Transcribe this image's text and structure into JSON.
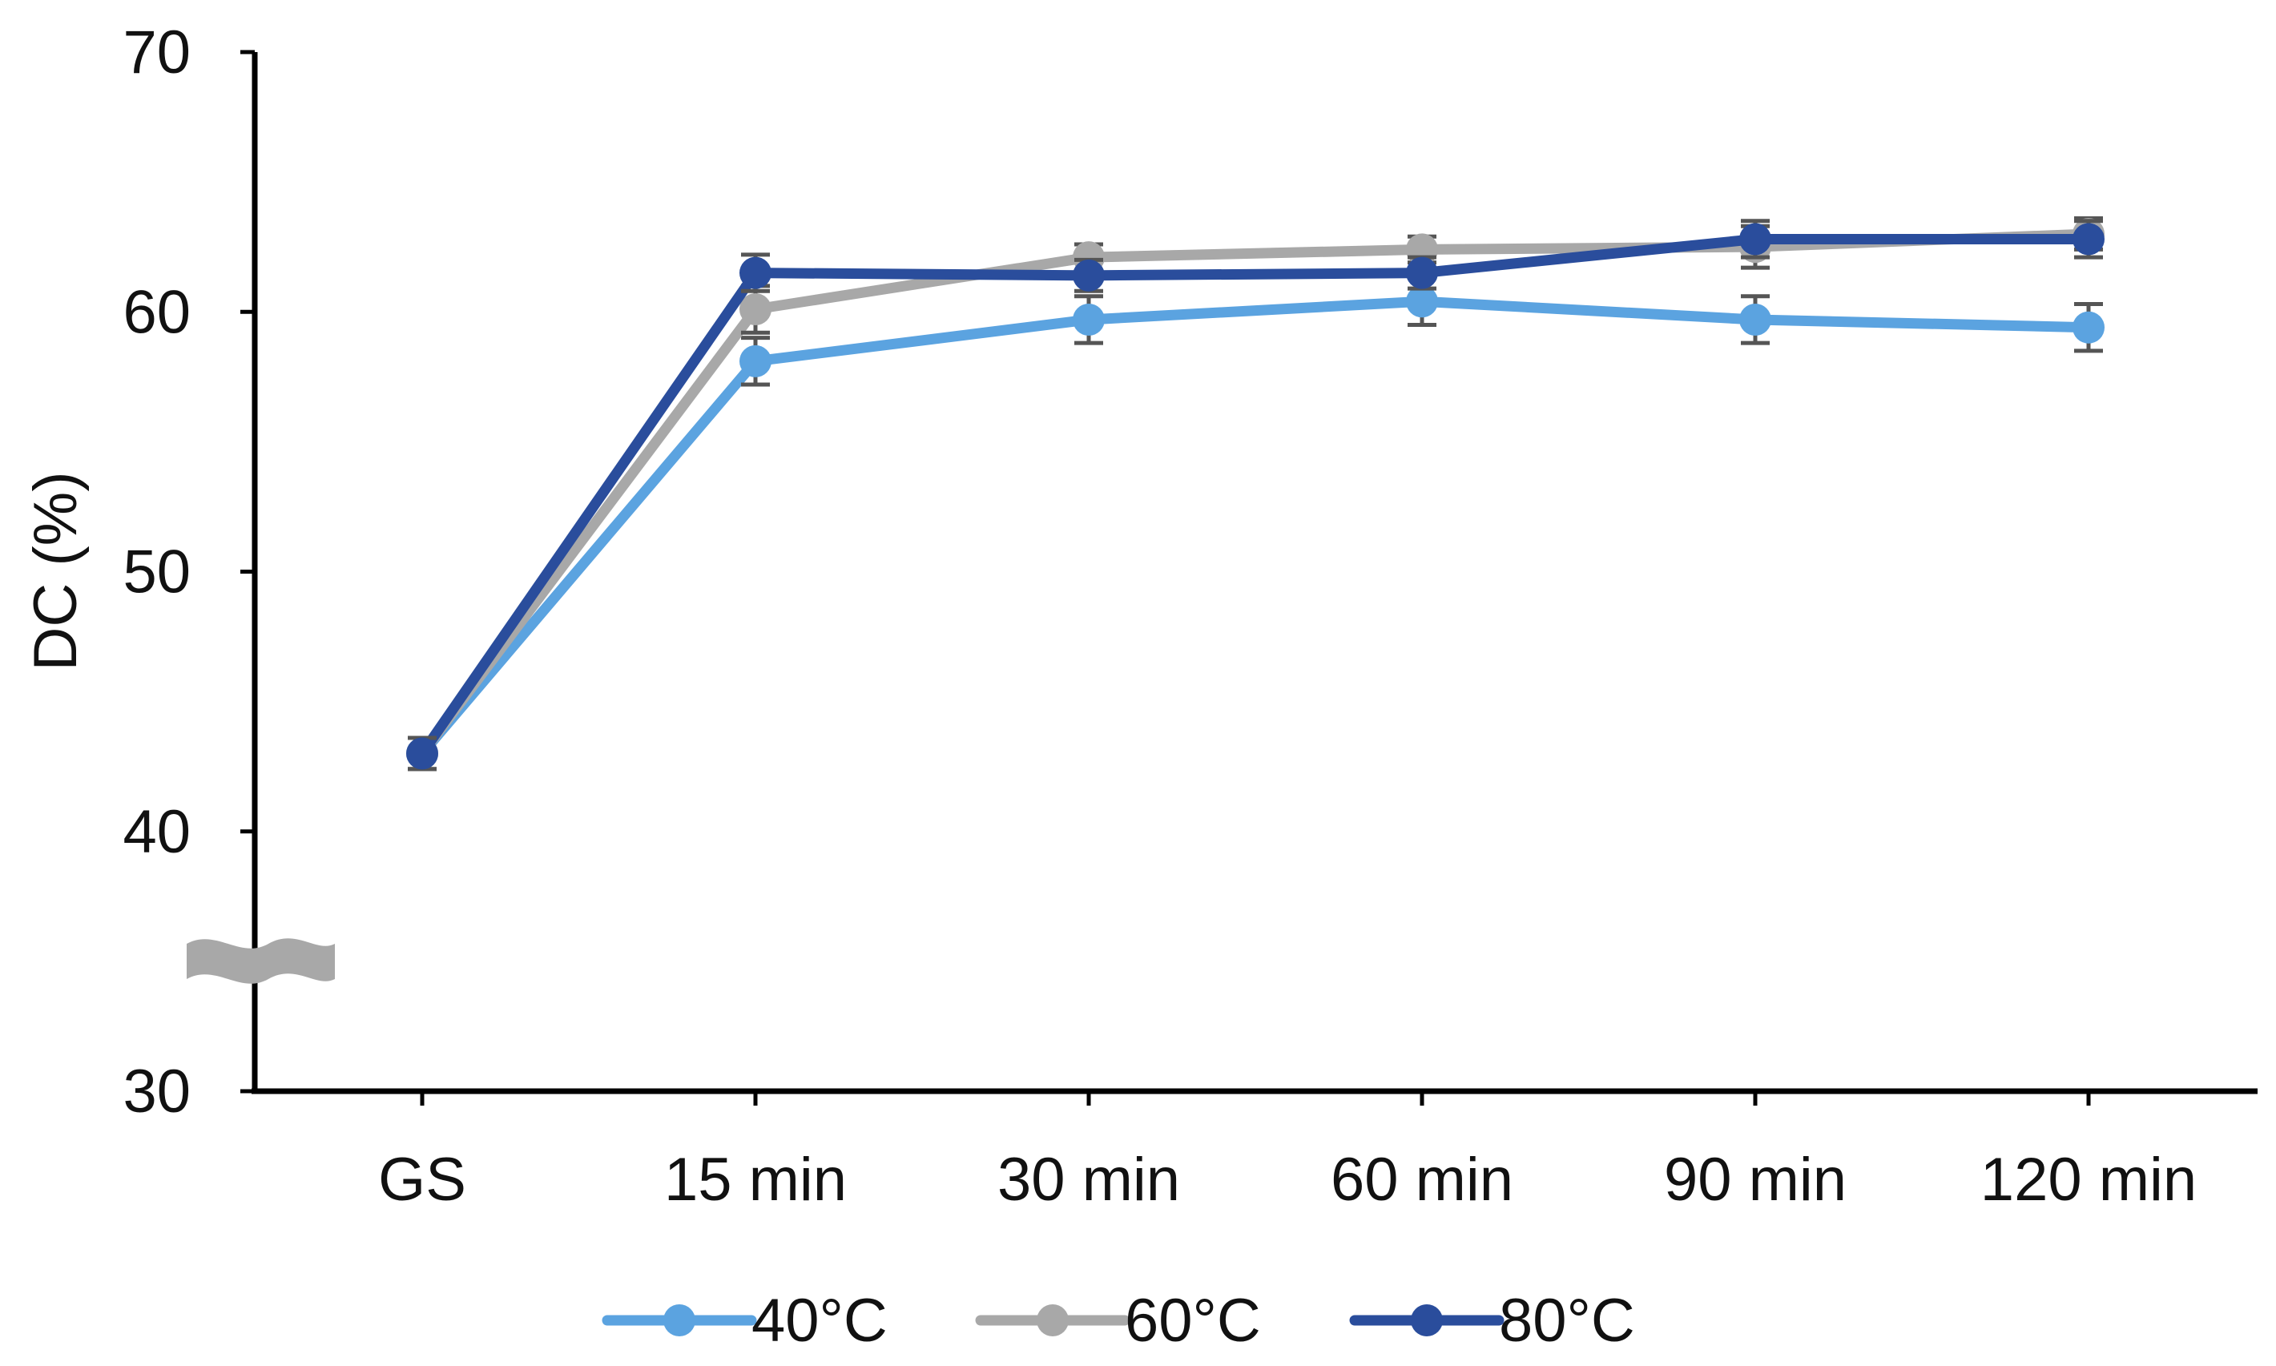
{
  "chart_data": {
    "type": "line",
    "title": "",
    "xlabel": "",
    "ylabel": "DC (%)",
    "ylim": [
      30,
      70
    ],
    "yticks": [
      30,
      40,
      50,
      60,
      70
    ],
    "y_tick_labels": [
      "30",
      "40",
      "50",
      "60",
      "70"
    ],
    "axis_break": "between 30 and 40",
    "grid": false,
    "legend_position": "bottom",
    "categories": [
      "GS",
      "15 min",
      "30 min",
      "60 min",
      "90 min",
      "120 min"
    ],
    "series": [
      {
        "name": "40°C",
        "color": "#5ba3e0",
        "values": [
          43.0,
          58.1,
          59.7,
          60.4,
          59.7,
          59.4
        ],
        "errors": [
          0.6,
          0.9,
          0.9,
          0.9,
          0.9,
          0.9
        ]
      },
      {
        "name": "60°C",
        "color": "#a8a8a8",
        "values": [
          43.0,
          60.1,
          62.1,
          62.4,
          62.5,
          63.0
        ],
        "errors": [
          0.6,
          0.9,
          0.5,
          0.5,
          0.8,
          0.6
        ]
      },
      {
        "name": "80°C",
        "color": "#2a4d9c",
        "values": [
          43.0,
          61.5,
          61.4,
          61.5,
          62.8,
          62.8
        ],
        "errors": [
          0.6,
          0.7,
          0.6,
          0.6,
          0.7,
          0.7
        ]
      }
    ]
  }
}
